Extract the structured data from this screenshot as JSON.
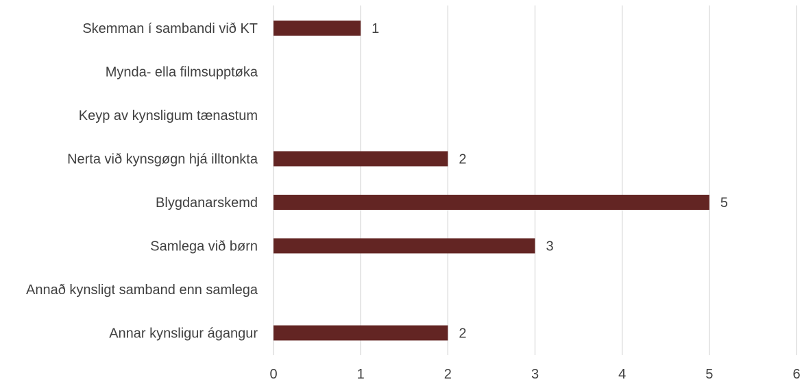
{
  "chart_data": {
    "type": "bar",
    "orientation": "horizontal",
    "categories": [
      "Skemman í sambandi við KT",
      "Mynda- ella filmsupptøka",
      "Keyp av kynsligum tænastum",
      "Nerta við kynsgøgn hjá illtonkta",
      "Blygdanarskemd",
      "Samlega við børn",
      "Annað kynsligt samband enn samlega",
      "Annar kynsligur ágangur"
    ],
    "values": [
      1,
      0,
      0,
      2,
      5,
      3,
      0,
      2
    ],
    "data_labels": [
      "1",
      "",
      "",
      "2",
      "5",
      "3",
      "",
      "2"
    ],
    "xlim": [
      0,
      6
    ],
    "x_ticks": [
      "0",
      "1",
      "2",
      "3",
      "4",
      "5",
      "6"
    ],
    "grid": "vertical",
    "legend": "none",
    "title": "",
    "xlabel": "",
    "ylabel": ""
  },
  "colors": {
    "bar": "#632523",
    "grid": "#d9d9d9",
    "text": "#404040"
  }
}
